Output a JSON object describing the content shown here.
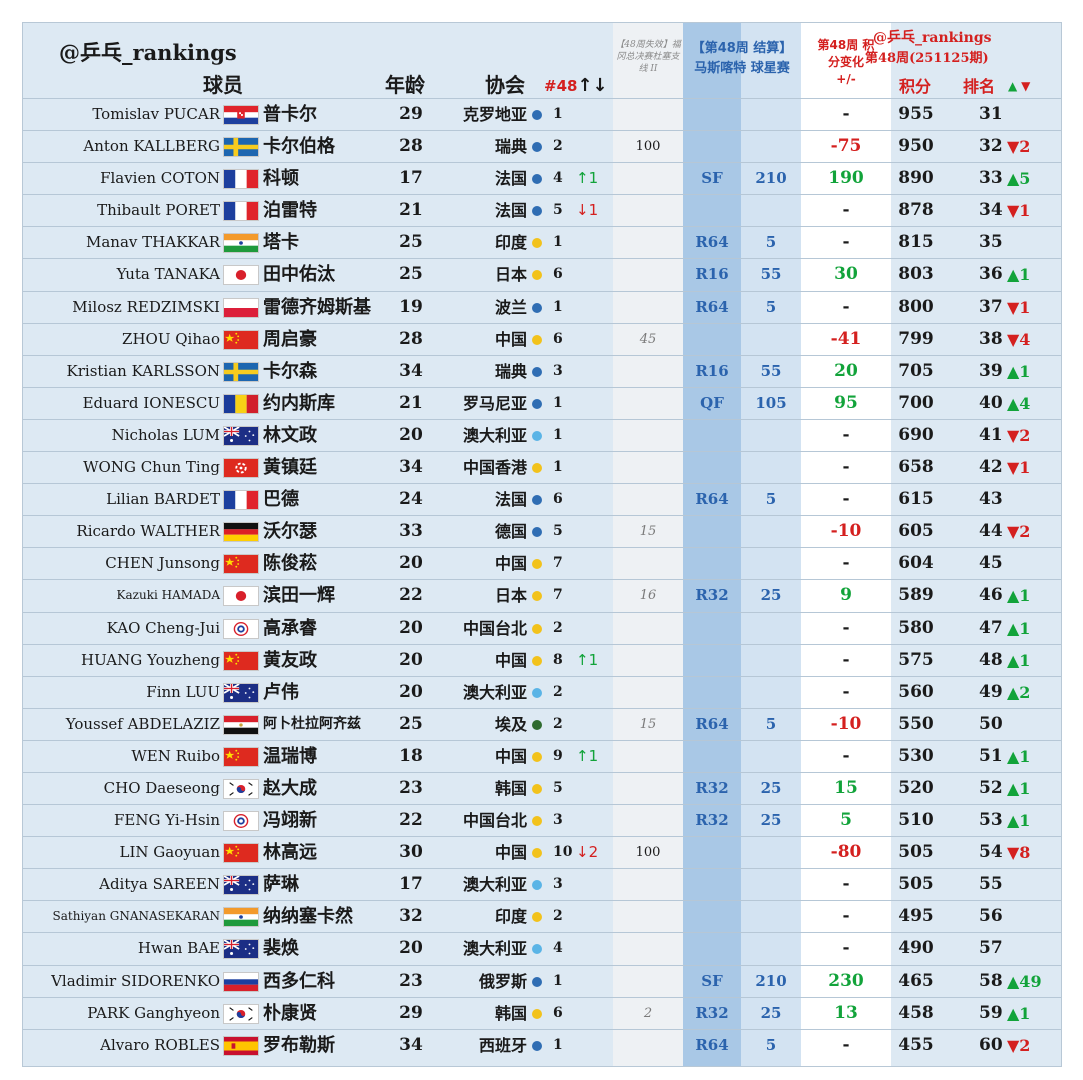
{
  "header": {
    "handle": "@乒乓_rankings",
    "col_player": "球员",
    "col_age": "年龄",
    "col_assoc": "协会",
    "col_seed": "#48",
    "seed_arrows": "↑↓",
    "out_note": "【48周失效】福冈总决赛杜塞支线 II",
    "mall_title": "【第48周 结算】",
    "mall_event": "马斯喀特 球星赛",
    "change_title": "第48周 积分变化",
    "change_sub": "+/-",
    "handle2": "@乒乓_rankings",
    "week_label": "第48周(251125期)",
    "col_points": "积分",
    "col_rank": "排名",
    "rank_up": "▲",
    "rank_down": "▼"
  },
  "rows": [
    {
      "en": "Tomislav PUCAR",
      "flag": "hr",
      "cn": "普卡尔",
      "age": "29",
      "assoc": "克罗地亚",
      "dot": "blue",
      "seed": "1",
      "mv": "",
      "out": "",
      "rnd": "",
      "pts": "",
      "chg": "-",
      "tot": "955",
      "rk": "31",
      "rmv": ""
    },
    {
      "en": "Anton KALLBERG",
      "flag": "se",
      "cn": "卡尔伯格",
      "age": "28",
      "assoc": "瑞典",
      "dot": "blue",
      "seed": "2",
      "mv": "",
      "out": "100",
      "rnd": "",
      "pts": "",
      "chg": "-75",
      "tot": "950",
      "rk": "32",
      "rmv": "▼2"
    },
    {
      "en": "Flavien COTON",
      "flag": "fr",
      "cn": "科顿",
      "age": "17",
      "assoc": "法国",
      "dot": "blue",
      "seed": "4",
      "mv": "↑1",
      "out": "",
      "rnd": "SF",
      "pts": "210",
      "chg": "190",
      "tot": "890",
      "rk": "33",
      "rmv": "▲5"
    },
    {
      "en": "Thibault PORET",
      "flag": "fr",
      "cn": "泊雷特",
      "age": "21",
      "assoc": "法国",
      "dot": "blue",
      "seed": "5",
      "mv": "↓1",
      "out": "",
      "rnd": "",
      "pts": "",
      "chg": "-",
      "tot": "878",
      "rk": "34",
      "rmv": "▼1"
    },
    {
      "en": "Manav THAKKAR",
      "flag": "in",
      "cn": "塔卡",
      "age": "25",
      "assoc": "印度",
      "dot": "yellow",
      "seed": "1",
      "mv": "",
      "out": "",
      "rnd": "R64",
      "pts": "5",
      "chg": "-",
      "tot": "815",
      "rk": "35",
      "rmv": ""
    },
    {
      "en": "Yuta TANAKA",
      "flag": "jp",
      "cn": "田中佑汰",
      "age": "25",
      "assoc": "日本",
      "dot": "yellow",
      "seed": "6",
      "mv": "",
      "out": "",
      "rnd": "R16",
      "pts": "55",
      "chg": "30",
      "tot": "803",
      "rk": "36",
      "rmv": "▲1"
    },
    {
      "en": "Milosz REDZIMSKI",
      "flag": "pl",
      "cn": "雷德齐姆斯基",
      "age": "19",
      "assoc": "波兰",
      "dot": "blue",
      "seed": "1",
      "mv": "",
      "out": "",
      "rnd": "R64",
      "pts": "5",
      "chg": "-",
      "tot": "800",
      "rk": "37",
      "rmv": "▼1"
    },
    {
      "en": "ZHOU Qihao",
      "flag": "cn",
      "cn": "周启豪",
      "age": "28",
      "assoc": "中国",
      "dot": "yellow",
      "seed": "6",
      "mv": "",
      "out": "45",
      "outit": true,
      "rnd": "",
      "pts": "",
      "chg": "-41",
      "tot": "799",
      "rk": "38",
      "rmv": "▼4"
    },
    {
      "en": "Kristian KARLSSON",
      "flag": "se",
      "cn": "卡尔森",
      "age": "34",
      "assoc": "瑞典",
      "dot": "blue",
      "seed": "3",
      "mv": "",
      "out": "",
      "rnd": "R16",
      "pts": "55",
      "chg": "20",
      "tot": "705",
      "rk": "39",
      "rmv": "▲1"
    },
    {
      "en": "Eduard IONESCU",
      "flag": "ro",
      "cn": "约内斯库",
      "age": "21",
      "assoc": "罗马尼亚",
      "dot": "blue",
      "seed": "1",
      "mv": "",
      "out": "",
      "rnd": "QF",
      "pts": "105",
      "chg": "95",
      "tot": "700",
      "rk": "40",
      "rmv": "▲4"
    },
    {
      "en": "Nicholas LUM",
      "flag": "au",
      "cn": "林文政",
      "age": "20",
      "assoc": "澳大利亚",
      "dot": "lightblue",
      "seed": "1",
      "mv": "",
      "out": "",
      "rnd": "",
      "pts": "",
      "chg": "-",
      "tot": "690",
      "rk": "41",
      "rmv": "▼2"
    },
    {
      "en": "WONG Chun Ting",
      "flag": "hk",
      "cn": "黄镇廷",
      "age": "34",
      "assoc": "中国香港",
      "dot": "yellow",
      "seed": "1",
      "mv": "",
      "out": "",
      "rnd": "",
      "pts": "",
      "chg": "-",
      "tot": "658",
      "rk": "42",
      "rmv": "▼1"
    },
    {
      "en": "Lilian BARDET",
      "flag": "fr",
      "cn": "巴德",
      "age": "24",
      "assoc": "法国",
      "dot": "blue",
      "seed": "6",
      "mv": "",
      "out": "",
      "rnd": "R64",
      "pts": "5",
      "chg": "-",
      "tot": "615",
      "rk": "43",
      "rmv": ""
    },
    {
      "en": "Ricardo WALTHER",
      "flag": "de",
      "cn": "沃尔瑟",
      "age": "33",
      "assoc": "德国",
      "dot": "blue",
      "seed": "5",
      "mv": "",
      "out": "15",
      "outit": true,
      "rnd": "",
      "pts": "",
      "chg": "-10",
      "tot": "605",
      "rk": "44",
      "rmv": "▼2"
    },
    {
      "en": "CHEN Junsong",
      "flag": "cn",
      "cn": "陈俊菘",
      "age": "20",
      "assoc": "中国",
      "dot": "yellow",
      "seed": "7",
      "mv": "",
      "out": "",
      "rnd": "",
      "pts": "",
      "chg": "-",
      "tot": "604",
      "rk": "45",
      "rmv": ""
    },
    {
      "en": "Kazuki HAMADA",
      "flag": "jp",
      "cn": "滨田一辉",
      "age": "22",
      "assoc": "日本",
      "dot": "yellow",
      "seed": "7",
      "mv": "",
      "out": "16",
      "outit": true,
      "rnd": "R32",
      "pts": "25",
      "chg": "9",
      "tot": "589",
      "rk": "46",
      "rmv": "▲1",
      "ensm": true
    },
    {
      "en": "KAO Cheng-Jui",
      "flag": "tpe",
      "cn": "高承睿",
      "age": "20",
      "assoc": "中国台北",
      "dot": "yellow",
      "seed": "2",
      "mv": "",
      "out": "",
      "rnd": "",
      "pts": "",
      "chg": "-",
      "tot": "580",
      "rk": "47",
      "rmv": "▲1"
    },
    {
      "en": "HUANG Youzheng",
      "flag": "cn",
      "cn": "黄友政",
      "age": "20",
      "assoc": "中国",
      "dot": "yellow",
      "seed": "8",
      "mv": "↑1",
      "out": "",
      "rnd": "",
      "pts": "",
      "chg": "-",
      "tot": "575",
      "rk": "48",
      "rmv": "▲1"
    },
    {
      "en": "Finn LUU",
      "flag": "au",
      "cn": "卢伟",
      "age": "20",
      "assoc": "澳大利亚",
      "dot": "lightblue",
      "seed": "2",
      "mv": "",
      "out": "",
      "rnd": "",
      "pts": "",
      "chg": "-",
      "tot": "560",
      "rk": "49",
      "rmv": "▲2"
    },
    {
      "en": "Youssef ABDELAZIZ",
      "flag": "eg",
      "cn": "阿卜杜拉阿齐兹",
      "age": "25",
      "assoc": "埃及",
      "dot": "green",
      "seed": "2",
      "mv": "",
      "out": "15",
      "outit": true,
      "rnd": "R64",
      "pts": "5",
      "chg": "-10",
      "tot": "550",
      "rk": "50",
      "rmv": "",
      "cnsm": true
    },
    {
      "en": "WEN Ruibo",
      "flag": "cn",
      "cn": "温瑞博",
      "age": "18",
      "assoc": "中国",
      "dot": "yellow",
      "seed": "9",
      "mv": "↑1",
      "out": "",
      "rnd": "",
      "pts": "",
      "chg": "-",
      "tot": "530",
      "rk": "51",
      "rmv": "▲1"
    },
    {
      "en": "CHO Daeseong",
      "flag": "kr",
      "cn": "赵大成",
      "age": "23",
      "assoc": "韩国",
      "dot": "yellow",
      "seed": "5",
      "mv": "",
      "out": "",
      "rnd": "R32",
      "pts": "25",
      "chg": "15",
      "tot": "520",
      "rk": "52",
      "rmv": "▲1"
    },
    {
      "en": "FENG Yi-Hsin",
      "flag": "tpe",
      "cn": "冯翊新",
      "age": "22",
      "assoc": "中国台北",
      "dot": "yellow",
      "seed": "3",
      "mv": "",
      "out": "",
      "rnd": "R32",
      "pts": "25",
      "chg": "5",
      "tot": "510",
      "rk": "53",
      "rmv": "▲1"
    },
    {
      "en": "LIN Gaoyuan",
      "flag": "cn",
      "cn": "林高远",
      "age": "30",
      "assoc": "中国",
      "dot": "yellow",
      "seed": "10",
      "mv": "↓2",
      "out": "100",
      "rnd": "",
      "pts": "",
      "chg": "-80",
      "tot": "505",
      "rk": "54",
      "rmv": "▼8"
    },
    {
      "en": "Aditya SAREEN",
      "flag": "au",
      "cn": "萨琳",
      "age": "17",
      "assoc": "澳大利亚",
      "dot": "lightblue",
      "seed": "3",
      "mv": "",
      "out": "",
      "rnd": "",
      "pts": "",
      "chg": "-",
      "tot": "505",
      "rk": "55",
      "rmv": ""
    },
    {
      "en": "Sathiyan GNANASEKARAN",
      "flag": "in",
      "cn": "纳纳塞卡然",
      "age": "32",
      "assoc": "印度",
      "dot": "yellow",
      "seed": "2",
      "mv": "",
      "out": "",
      "rnd": "",
      "pts": "",
      "chg": "-",
      "tot": "495",
      "rk": "56",
      "rmv": "",
      "ensm": true
    },
    {
      "en": "Hwan BAE",
      "flag": "au",
      "cn": "裴焕",
      "age": "20",
      "assoc": "澳大利亚",
      "dot": "lightblue",
      "seed": "4",
      "mv": "",
      "out": "",
      "rnd": "",
      "pts": "",
      "chg": "-",
      "tot": "490",
      "rk": "57",
      "rmv": ""
    },
    {
      "en": "Vladimir SIDORENKO",
      "flag": "ru",
      "cn": "西多仁科",
      "age": "23",
      "assoc": "俄罗斯",
      "dot": "blue",
      "seed": "1",
      "mv": "",
      "out": "",
      "rnd": "SF",
      "pts": "210",
      "chg": "230",
      "tot": "465",
      "rk": "58",
      "rmv": "▲49"
    },
    {
      "en": "PARK Ganghyeon",
      "flag": "kr",
      "cn": "朴康贤",
      "age": "29",
      "assoc": "韩国",
      "dot": "yellow",
      "seed": "6",
      "mv": "",
      "out": "2",
      "outit": true,
      "rnd": "R32",
      "pts": "25",
      "chg": "13",
      "tot": "458",
      "rk": "59",
      "rmv": "▲1"
    },
    {
      "en": "Alvaro ROBLES",
      "flag": "es",
      "cn": "罗布勒斯",
      "age": "34",
      "assoc": "西班牙",
      "dot": "blue",
      "seed": "1",
      "mv": "",
      "out": "",
      "rnd": "R64",
      "pts": "5",
      "chg": "-",
      "tot": "455",
      "rk": "60",
      "rmv": "▼2"
    }
  ],
  "colors": {
    "up": "#12a33a",
    "down": "#d4201f",
    "blue": "#2f6db3",
    "yellow": "#f2c21b",
    "lightblue": "#5ab4e6",
    "green": "#2f6b2f"
  }
}
